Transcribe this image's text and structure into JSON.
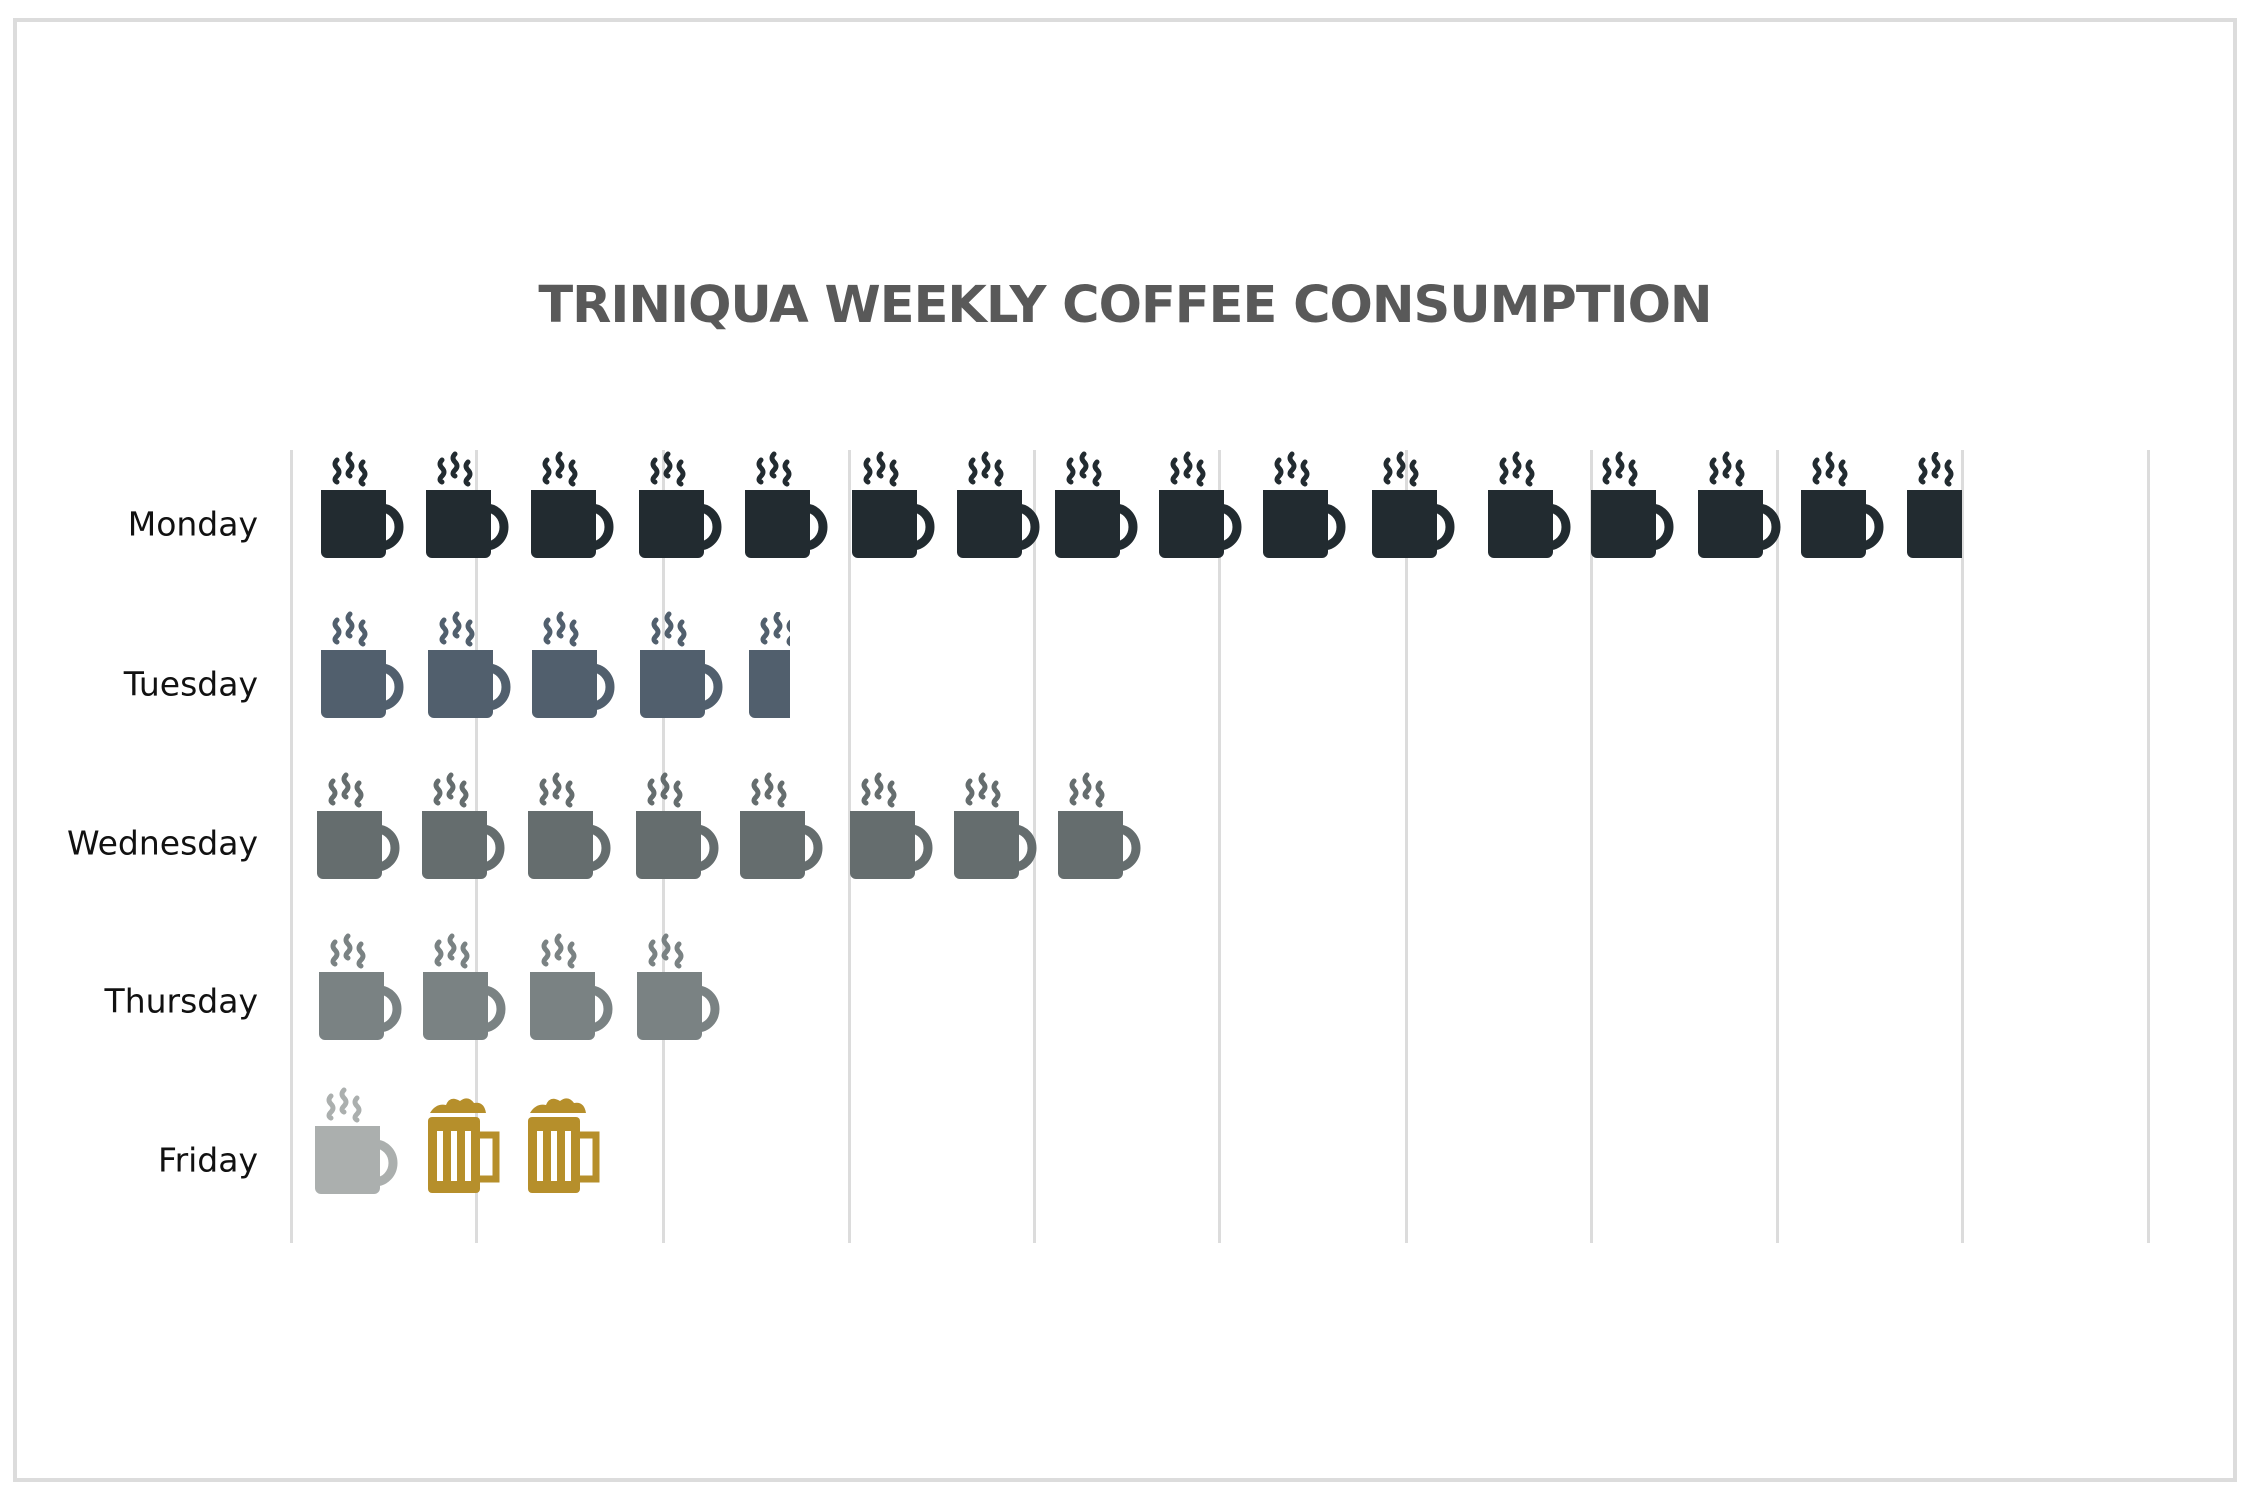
{
  "chart_data": {
    "type": "bar",
    "title": "TRINIQUA WEEKLY COFFEE CONSUMPTION",
    "orientation": "horizontal",
    "style": "pictograph",
    "xlabel": "",
    "ylabel": "",
    "grid": true,
    "legend": null,
    "categories": [
      "Monday",
      "Tuesday",
      "Wednesday",
      "Thursday",
      "Friday"
    ],
    "series": [
      {
        "name": "Coffee mugs",
        "icon": "coffee-mug",
        "values": [
          15.5,
          4.4,
          8,
          4,
          1
        ]
      },
      {
        "name": "Beer mugs",
        "icon": "beer-mug",
        "values": [
          0,
          0,
          0,
          0,
          2
        ]
      }
    ],
    "axis_units_estimate": {
      "Monday": 9.0,
      "Tuesday": 2.7
    },
    "xlim": [
      0,
      10
    ],
    "gridline_count": 11
  },
  "title": "TRINIQUA WEEKLY COFFEE CONSUMPTION",
  "colors": {
    "monday": "#222b30",
    "tuesday": "#515f6d",
    "wednesday": "#656d6e",
    "thursday": "#7a8283",
    "friday_coffee": "#abafae",
    "beer": "#b68f2b",
    "title": "#595959",
    "grid": "#dcdcdc",
    "label": "#111111"
  },
  "rows": [
    {
      "label": "Monday",
      "color": "#222b30",
      "mugs": 16
    },
    {
      "label": "Tuesday",
      "color": "#515f6d",
      "mugs": 5
    },
    {
      "label": "Wednesday",
      "color": "#656d6e",
      "mugs": 8
    },
    {
      "label": "Thursday",
      "color": "#7a8283",
      "mugs": 4
    },
    {
      "label": "Friday",
      "color": "#abafae",
      "mugs": 1,
      "beers": 2
    }
  ]
}
